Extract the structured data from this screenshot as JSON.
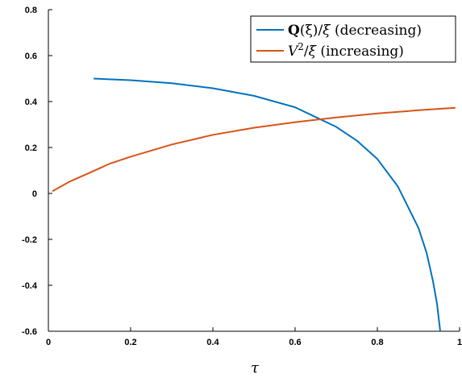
{
  "chart_data": {
    "type": "line",
    "title": "",
    "xlabel": "τ",
    "ylabel": "",
    "xlim": [
      0,
      1
    ],
    "ylim": [
      -0.6,
      0.8
    ],
    "xticks": [
      0,
      0.2,
      0.4,
      0.6,
      0.8,
      1
    ],
    "yticks": [
      -0.6,
      -0.4,
      -0.2,
      0,
      0.2,
      0.4,
      0.6,
      0.8
    ],
    "xtick_labels": [
      "0",
      "0.2",
      "0.4",
      "0.6",
      "0.8",
      "1"
    ],
    "ytick_labels": [
      "-0.6",
      "-0.4",
      "-0.2",
      "0",
      "0.2",
      "0.4",
      "0.6",
      "0.8"
    ],
    "grid": false,
    "legend_position": "top-right",
    "series": [
      {
        "name": "Q(ξ)/ξ (decreasing)",
        "color": "#0072bd",
        "x": [
          0.11,
          0.2,
          0.3,
          0.4,
          0.5,
          0.6,
          0.7,
          0.75,
          0.8,
          0.85,
          0.9,
          0.92,
          0.935,
          0.945,
          0.953
        ],
        "y": [
          0.5,
          0.493,
          0.48,
          0.458,
          0.425,
          0.375,
          0.29,
          0.23,
          0.15,
          0.03,
          -0.15,
          -0.26,
          -0.38,
          -0.48,
          -0.6
        ]
      },
      {
        "name": "V²/ξ (increasing)",
        "color": "#d95319",
        "x": [
          0.01,
          0.05,
          0.1,
          0.15,
          0.2,
          0.3,
          0.4,
          0.5,
          0.6,
          0.7,
          0.8,
          0.9,
          0.99
        ],
        "y": [
          0.01,
          0.05,
          0.09,
          0.13,
          0.16,
          0.213,
          0.255,
          0.286,
          0.31,
          0.331,
          0.348,
          0.362,
          0.373
        ]
      }
    ],
    "legend": {
      "entry1": {
        "bold_part": "Q",
        "mid_part": "(ξ)/",
        "math_part": "ξ",
        "suffix": " (decreasing)"
      },
      "entry2": {
        "math_part": "V",
        "sup": "2",
        "mid_part": "/",
        "math_part2": "ξ",
        "suffix": " (increasing)"
      }
    }
  }
}
